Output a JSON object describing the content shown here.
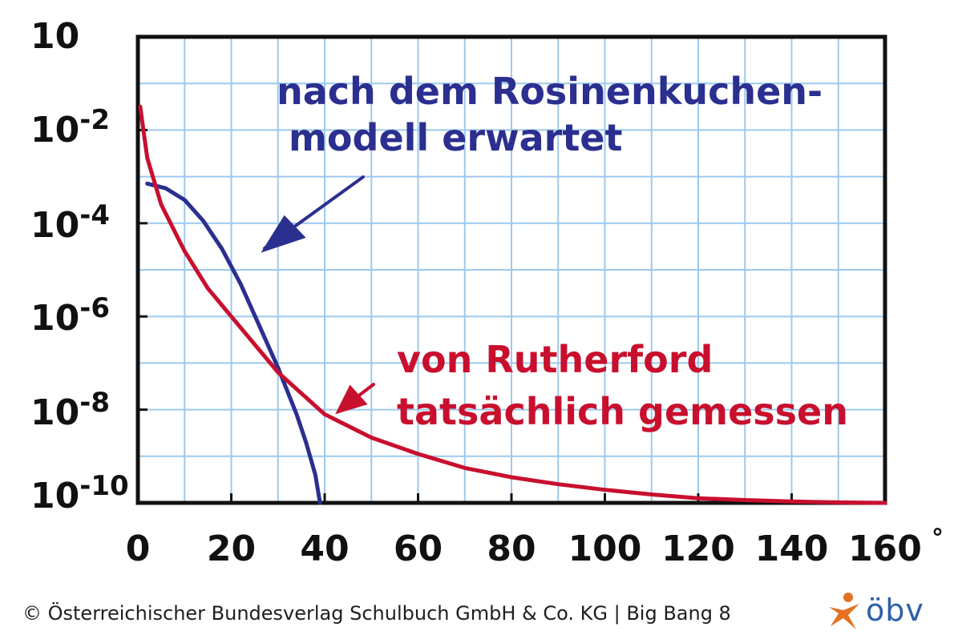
{
  "chart_data": {
    "type": "line",
    "xlabel": "",
    "ylabel": "",
    "x_ticks": [
      "0",
      "20",
      "40",
      "60",
      "80",
      "100",
      "120",
      "140",
      "160"
    ],
    "x_unit": "°",
    "y_ticks": [
      "10",
      "10-2",
      "10-4",
      "10-6",
      "10-8",
      "10-10"
    ],
    "y_scale": "log",
    "xlim": [
      0,
      160
    ],
    "ylim_exponent": [
      -10,
      0
    ],
    "grid": true,
    "series": [
      {
        "name": "nach dem Rosinenkuchen-modell erwartet",
        "color": "#2b2f8f",
        "x": [
          2,
          6,
          10,
          14,
          18,
          22,
          26,
          30,
          34,
          36,
          38,
          39
        ],
        "log10_y": [
          -3.15,
          -3.25,
          -3.5,
          -3.95,
          -4.55,
          -5.3,
          -6.2,
          -7.1,
          -8.1,
          -8.7,
          -9.4,
          -10.0
        ]
      },
      {
        "name": "von Rutherford tatsächlich gemessen",
        "color": "#c8102e",
        "x": [
          0.5,
          2,
          5,
          10,
          15,
          20,
          30,
          40,
          50,
          60,
          70,
          80,
          90,
          100,
          110,
          120,
          130,
          140,
          150,
          160
        ],
        "log10_y": [
          -1.5,
          -2.6,
          -3.6,
          -4.6,
          -5.4,
          -6.0,
          -7.2,
          -8.1,
          -8.6,
          -8.95,
          -9.25,
          -9.45,
          -9.6,
          -9.72,
          -9.82,
          -9.9,
          -9.94,
          -9.97,
          -9.99,
          -10.0
        ]
      }
    ],
    "annotations": {
      "blue_line1": "nach dem Rosinenkuchen-",
      "blue_line2": "modell erwartet",
      "red_line1": "von Rutherford",
      "red_line2": "tatsächlich gemessen"
    }
  },
  "footer": {
    "copyright": "© Österreichischer Bundesverlag Schulbuch GmbH & Co. KG |  Big Bang 8",
    "logo_text": "öbv",
    "logo_color": "#e37222",
    "logo_text_color": "#2d61a8"
  }
}
